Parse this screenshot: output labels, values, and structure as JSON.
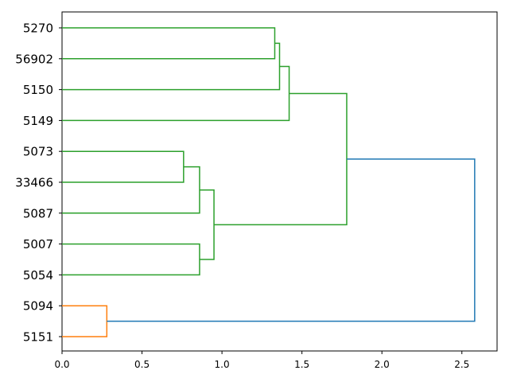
{
  "chart_data": {
    "type": "dendrogram",
    "orientation": "horizontal",
    "title": "",
    "xlabel": "",
    "ylabel": "",
    "xlim": [
      0,
      2.72
    ],
    "x_ticks": [
      "0.0",
      "0.5",
      "1.0",
      "1.5",
      "2.0",
      "2.5"
    ],
    "x_tick_values": [
      0,
      0.5,
      1.0,
      1.5,
      2.0,
      2.5
    ],
    "leaves": [
      "5270",
      "56902",
      "5150",
      "5149",
      "5073",
      "33466",
      "5087",
      "5007",
      "5054",
      "5094",
      "5151"
    ],
    "links": [
      {
        "top": 0,
        "bottom": 1,
        "height": 1.33,
        "color": "#2ca02c"
      },
      {
        "top": 0.5,
        "bottom": 2,
        "height": 1.36,
        "color": "#2ca02c"
      },
      {
        "top": 1.25,
        "bottom": 3,
        "height": 1.42,
        "color": "#2ca02c"
      },
      {
        "top": 4,
        "bottom": 5,
        "height": 0.76,
        "color": "#2ca02c"
      },
      {
        "top": 4.5,
        "bottom": 6,
        "height": 0.86,
        "color": "#2ca02c"
      },
      {
        "top": 7,
        "bottom": 8,
        "height": 0.86,
        "color": "#2ca02c"
      },
      {
        "top": 5.25,
        "bottom": 7.5,
        "height": 0.95,
        "color": "#2ca02c"
      },
      {
        "top": 2.125,
        "bottom": 6.375,
        "height": 1.78,
        "color": "#2ca02c"
      },
      {
        "top": 9,
        "bottom": 10,
        "height": 0.28,
        "color": "#ff7f0e"
      },
      {
        "top": 4.25,
        "bottom": 9.5,
        "height": 2.58,
        "color": "#1f77b4"
      }
    ]
  }
}
